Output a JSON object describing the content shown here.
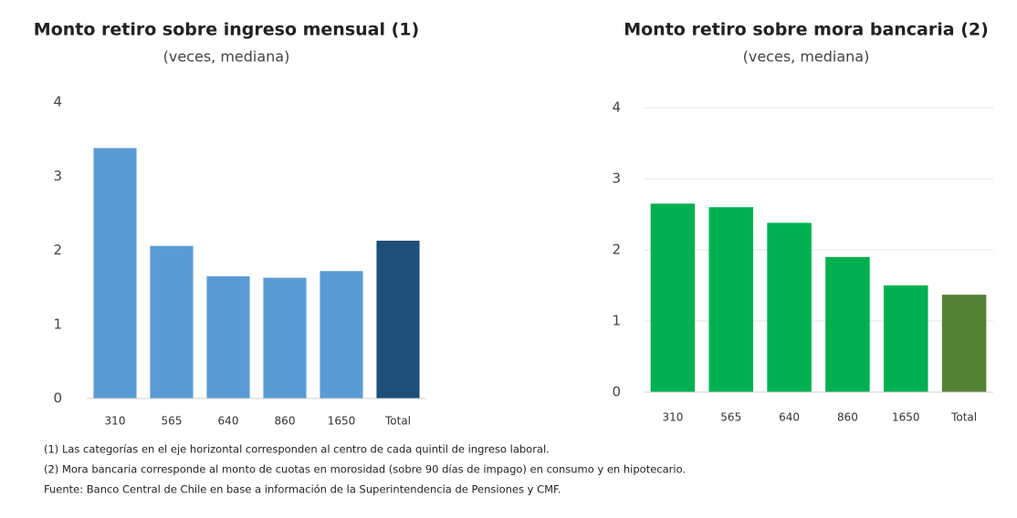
{
  "chart_data": [
    {
      "type": "bar",
      "title": "Monto retiro sobre ingreso mensual (1)",
      "subtitle": "(veces, mediana)",
      "categories": [
        "310",
        "565",
        "640",
        "860",
        "1650",
        "Total"
      ],
      "values": [
        3.38,
        2.06,
        1.65,
        1.63,
        1.72,
        2.13
      ],
      "colors": [
        "#5b9bd5",
        "#5b9bd5",
        "#5b9bd5",
        "#5b9bd5",
        "#5b9bd5",
        "#1f4e79"
      ],
      "ylim": [
        0,
        4
      ],
      "yticks": [
        0,
        1,
        2,
        3,
        4
      ],
      "grid": false
    },
    {
      "type": "bar",
      "title": "Monto retiro sobre mora bancaria (2)",
      "subtitle": "(veces, mediana)",
      "categories": [
        "310",
        "565",
        "640",
        "860",
        "1650",
        "Total"
      ],
      "values": [
        2.65,
        2.6,
        2.38,
        1.9,
        1.5,
        1.37
      ],
      "colors": [
        "#00b050",
        "#00b050",
        "#00b050",
        "#00b050",
        "#00b050",
        "#548235"
      ],
      "ylim": [
        0,
        4
      ],
      "yticks": [
        0,
        1,
        2,
        3,
        4
      ],
      "grid": true
    }
  ],
  "notes": [
    "(1) Las categorías en el eje horizontal corresponden al centro de cada quintil de ingreso laboral.",
    "(2) Mora bancaria corresponde al monto de cuotas en morosidad (sobre 90 días de impago) en consumo y en hipotecario.",
    "Fuente: Banco Central de Chile en base a información de la Superintendencia de Pensiones y CMF."
  ]
}
